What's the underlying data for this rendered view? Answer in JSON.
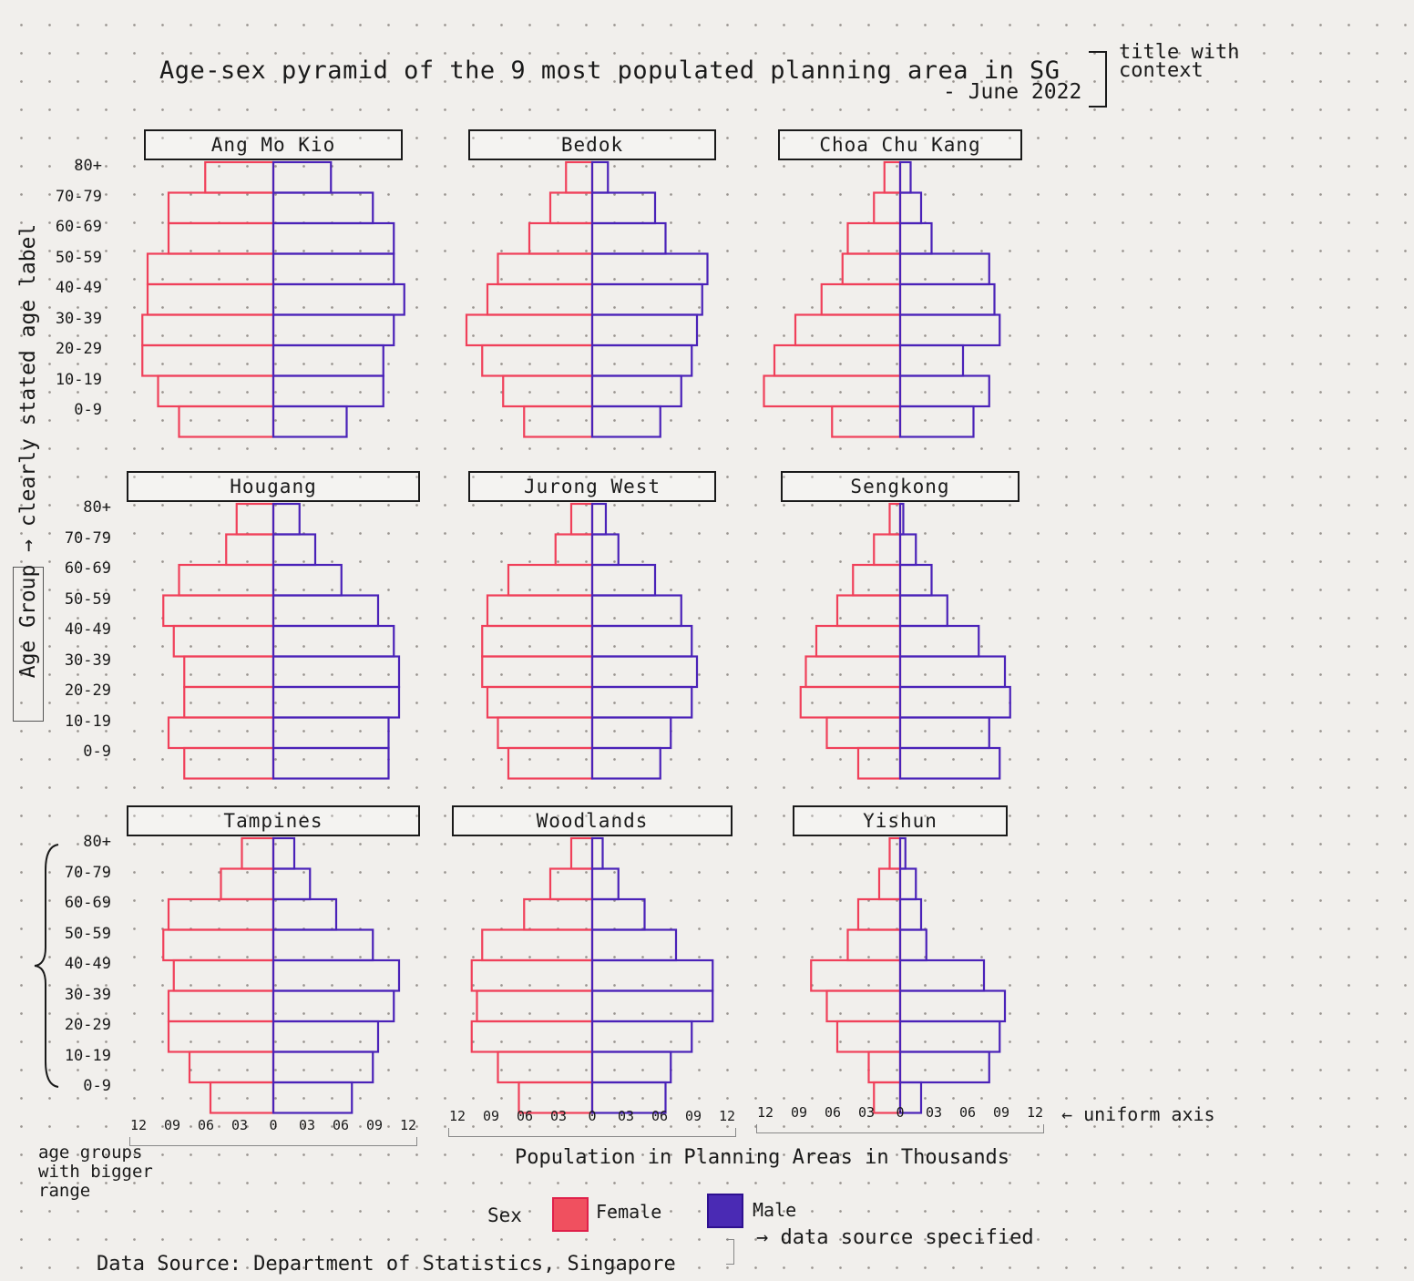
{
  "title": "Age-sex pyramid of the 9 most populated planning area in SG",
  "subtitle": "- June 2022",
  "y_axis_label": "Age Group",
  "x_axis_label": "Population in Planning Areas in Thousands",
  "legend": {
    "title": "Sex",
    "female": "Female",
    "male": "Male"
  },
  "colors": {
    "female": "#f0405a",
    "male": "#4a22b8"
  },
  "source": "Data Source: Department of Statistics, Singapore",
  "annotations": {
    "title_note": "title with context",
    "ylabel_note": "→ clearly stated age label",
    "axis_note": "← uniform axis",
    "age_note": "age groups with bigger range",
    "source_note": "→ data source specified"
  },
  "chart_data": {
    "type": "bar",
    "orientation": "horizontal-pyramid",
    "age_groups": [
      "80+",
      "70-79",
      "60-69",
      "50-59",
      "40-49",
      "30-39",
      "20-29",
      "10-19",
      "0-9"
    ],
    "x_ticks": [
      "12",
      "09",
      "06",
      "03",
      "0",
      "03",
      "06",
      "09",
      "12"
    ],
    "xlim": [
      -12,
      12
    ],
    "x_unit": "thousands",
    "panels": [
      {
        "name": "Ang Mo Kio",
        "female": [
          6.5,
          10,
          10,
          12,
          12,
          12.5,
          12.5,
          11,
          9
        ],
        "male": [
          5.5,
          9.5,
          11.5,
          11.5,
          12.5,
          11.5,
          10.5,
          10.5,
          7
        ]
      },
      {
        "name": "Bedok",
        "female": [
          2.5,
          4,
          6,
          9,
          10,
          12,
          10.5,
          8.5,
          6.5
        ],
        "male": [
          1.5,
          6,
          7,
          11,
          10.5,
          10,
          9.5,
          8.5,
          6.5
        ]
      },
      {
        "name": "Choa Chu Kang",
        "female": [
          1.5,
          2.5,
          5,
          5.5,
          7.5,
          10,
          12,
          13,
          6.5
        ],
        "male": [
          1,
          2,
          3,
          8.5,
          9,
          9.5,
          6,
          8.5,
          7
        ]
      },
      {
        "name": "Hougang",
        "female": [
          3.5,
          4.5,
          9,
          10.5,
          9.5,
          8.5,
          8.5,
          10,
          8.5
        ],
        "male": [
          2.5,
          4,
          6.5,
          10,
          11.5,
          12,
          12,
          11,
          11
        ]
      },
      {
        "name": "Jurong West",
        "female": [
          2,
          3.5,
          8,
          10,
          10.5,
          10.5,
          10,
          9,
          8
        ],
        "male": [
          1.3,
          2.5,
          6,
          8.5,
          9.5,
          10,
          9.5,
          7.5,
          6.5
        ]
      },
      {
        "name": "Sengkong",
        "female": [
          1,
          2.5,
          4.5,
          6,
          8,
          9,
          9.5,
          7,
          4
        ],
        "male": [
          0.3,
          1.5,
          3,
          4.5,
          7.5,
          10,
          10.5,
          8.5,
          9.5
        ]
      },
      {
        "name": "Tampines",
        "female": [
          3,
          5,
          10,
          10.5,
          9.5,
          10,
          10,
          8,
          6
        ],
        "male": [
          2,
          3.5,
          6,
          9.5,
          12,
          11.5,
          10,
          9.5,
          7.5
        ]
      },
      {
        "name": "Woodlands",
        "female": [
          2,
          4,
          6.5,
          10.5,
          11.5,
          11,
          11.5,
          9,
          7
        ],
        "male": [
          1,
          2.5,
          5,
          8,
          11.5,
          11.5,
          9.5,
          7.5,
          7
        ]
      },
      {
        "name": "Yishun",
        "female": [
          1,
          2,
          4,
          5,
          8.5,
          7,
          6,
          3,
          2.5
        ],
        "male": [
          0.5,
          1.5,
          2,
          2.5,
          8,
          10,
          9.5,
          8.5,
          2
        ]
      }
    ]
  }
}
